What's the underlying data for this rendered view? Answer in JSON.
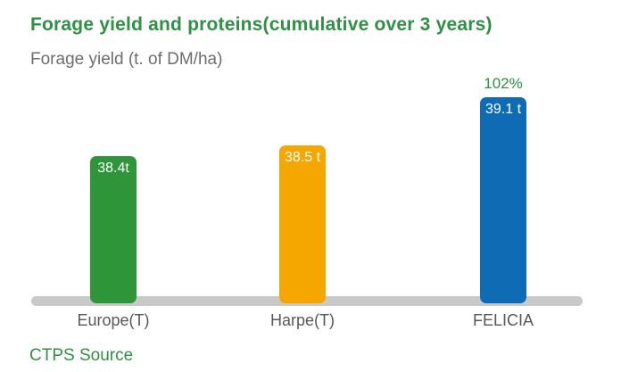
{
  "title": "Forage yield and proteins(cumulative over 3 years)",
  "subtitle": "Forage yield (t. of DM/ha)",
  "source": "CTPS Source",
  "chart_data": {
    "type": "bar",
    "title": "Forage yield and proteins(cumulative over 3 years)",
    "ylabel": "Forage yield (t. of DM/ha)",
    "xlabel": "",
    "categories": [
      "Europe(T)",
      "Harpe(T)",
      "FELICIA"
    ],
    "values": [
      38.4,
      38.5,
      39.1
    ],
    "value_labels": [
      "38.4t",
      "38.5 t",
      "39.1 t"
    ],
    "unit": "t of DM/ha",
    "annotations": [
      {
        "target": "FELICIA",
        "text": "102%"
      }
    ],
    "axis": {
      "y_axis_visible": false,
      "grid": false,
      "baseline_visible": true
    },
    "legend": {
      "visible": false
    },
    "colors": {
      "bar_europe": "#2e9638",
      "bar_harpe": "#f5a700",
      "bar_felicia": "#0f6cb4",
      "accent_green_text": "#2e9143",
      "baseline_gray": "#c9c9c9",
      "category_label_gray": "#58585a",
      "subtitle_gray": "#6d6d6d",
      "value_label_white": "#ffffff"
    }
  }
}
